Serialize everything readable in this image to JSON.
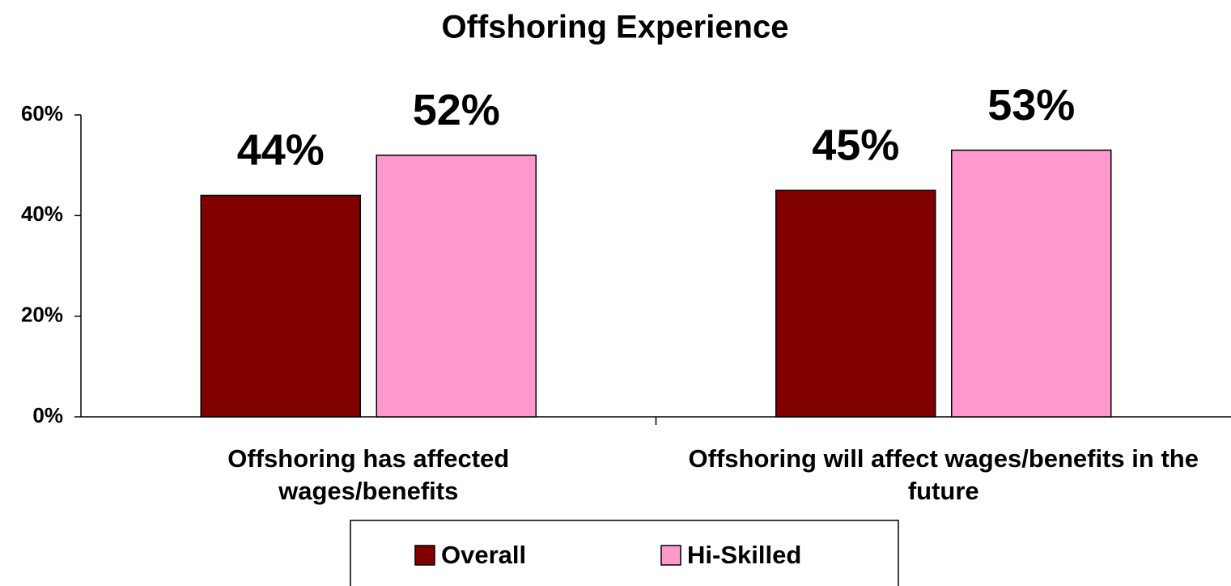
{
  "chart_data": {
    "type": "bar",
    "title": "Offshoring Experience",
    "categories": [
      "Offshoring has affected wages/benefits",
      "Offshoring will affect wages/benefits in the future"
    ],
    "series": [
      {
        "name": "Overall",
        "color": "#800000",
        "values": [
          44,
          45
        ],
        "value_labels": [
          "44%",
          "45%"
        ]
      },
      {
        "name": "Hi-Skilled",
        "color": "#ff99cc",
        "values": [
          52,
          53
        ],
        "value_labels": [
          "52%",
          "53%"
        ]
      }
    ],
    "ylim": [
      0,
      60
    ],
    "yticks": [
      {
        "value": 0,
        "label": "0%"
      },
      {
        "value": 20,
        "label": "20%"
      },
      {
        "value": 40,
        "label": "40%"
      },
      {
        "value": 60,
        "label": "60%"
      }
    ],
    "grid": false,
    "legend": "bottom"
  }
}
